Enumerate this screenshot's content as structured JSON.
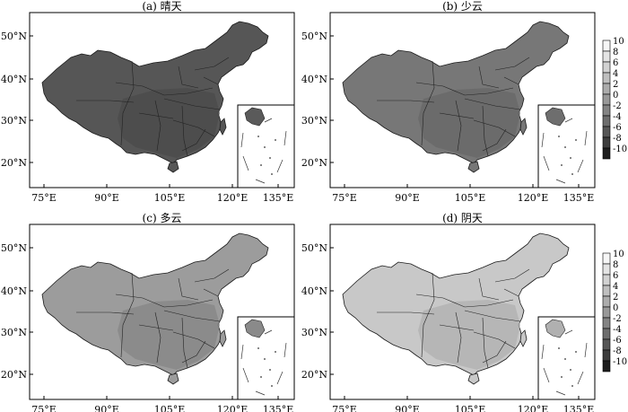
{
  "figure": {
    "panels": [
      {
        "id": "a",
        "title": "(a) 晴天",
        "fill": "#565656",
        "fill2": "#4a4a4a",
        "inset_fill": "#5a5a5a"
      },
      {
        "id": "b",
        "title": "(b) 少云",
        "fill": "#777777",
        "fill2": "#666666",
        "inset_fill": "#6e6e6e"
      },
      {
        "id": "c",
        "title": "(c) 多云",
        "fill": "#9c9c9c",
        "fill2": "#848484",
        "inset_fill": "#8a8a8a"
      },
      {
        "id": "d",
        "title": "(d) 阴天",
        "fill": "#c8c8c8",
        "fill2": "#aeaeae",
        "inset_fill": "#b0b0b0"
      }
    ],
    "x_ticks": [
      "75°E",
      "90°E",
      "105°E",
      "120°E",
      "135°E"
    ],
    "y_ticks": [
      "50°N",
      "40°N",
      "30°N",
      "20°N"
    ],
    "colorbar": {
      "labels": [
        "10",
        "8",
        "6",
        "4",
        "2",
        "0",
        "-2",
        "-4",
        "-6",
        "-8",
        "-10"
      ],
      "colors": [
        "#f6f6f6",
        "#e4e4e4",
        "#d2d2d2",
        "#bfbfbf",
        "#acacac",
        "#999999",
        "#848484",
        "#6e6e6e",
        "#575757",
        "#3e3e3e",
        "#1e1e1e"
      ]
    }
  }
}
